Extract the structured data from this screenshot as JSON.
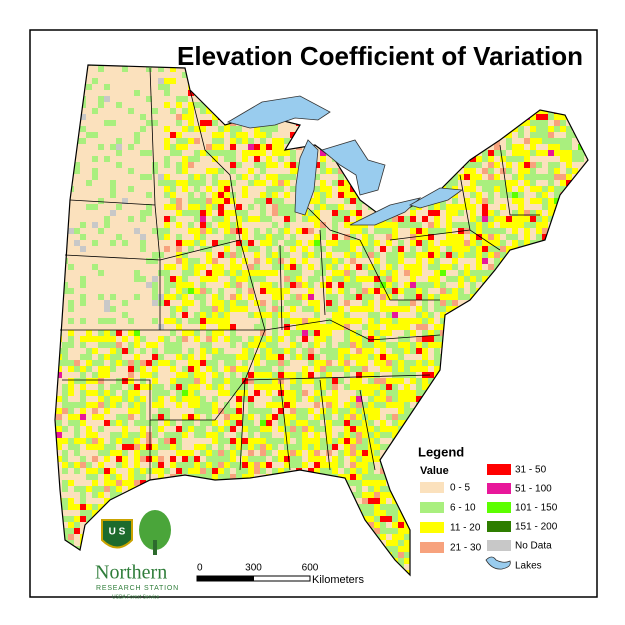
{
  "title": "Elevation Coefficient of Variation",
  "legend": {
    "title": "Legend",
    "subtitle": "Value",
    "items": [
      {
        "label": "0 - 5",
        "color": "#fbe1bd"
      },
      {
        "label": "6 - 10",
        "color": "#a9ef7e"
      },
      {
        "label": "11 - 20",
        "color": "#ffff00"
      },
      {
        "label": "21 - 30",
        "color": "#f7a27d"
      },
      {
        "label": "31 - 50",
        "color": "#ff0000"
      },
      {
        "label": "51 - 100",
        "color": "#e8179a"
      },
      {
        "label": "101 - 150",
        "color": "#5cff00"
      },
      {
        "label": "151 - 200",
        "color": "#2e7d00"
      },
      {
        "label": "No Data",
        "color": "#c8c8c8"
      }
    ],
    "lakes": "Lakes"
  },
  "scale_bar": {
    "ticks": [
      0,
      300,
      600
    ],
    "unit": "Kilometers"
  },
  "logo": {
    "name": "Northern",
    "subtitle": "RESEARCH STATION",
    "agency": "USDA Forest Service"
  }
}
